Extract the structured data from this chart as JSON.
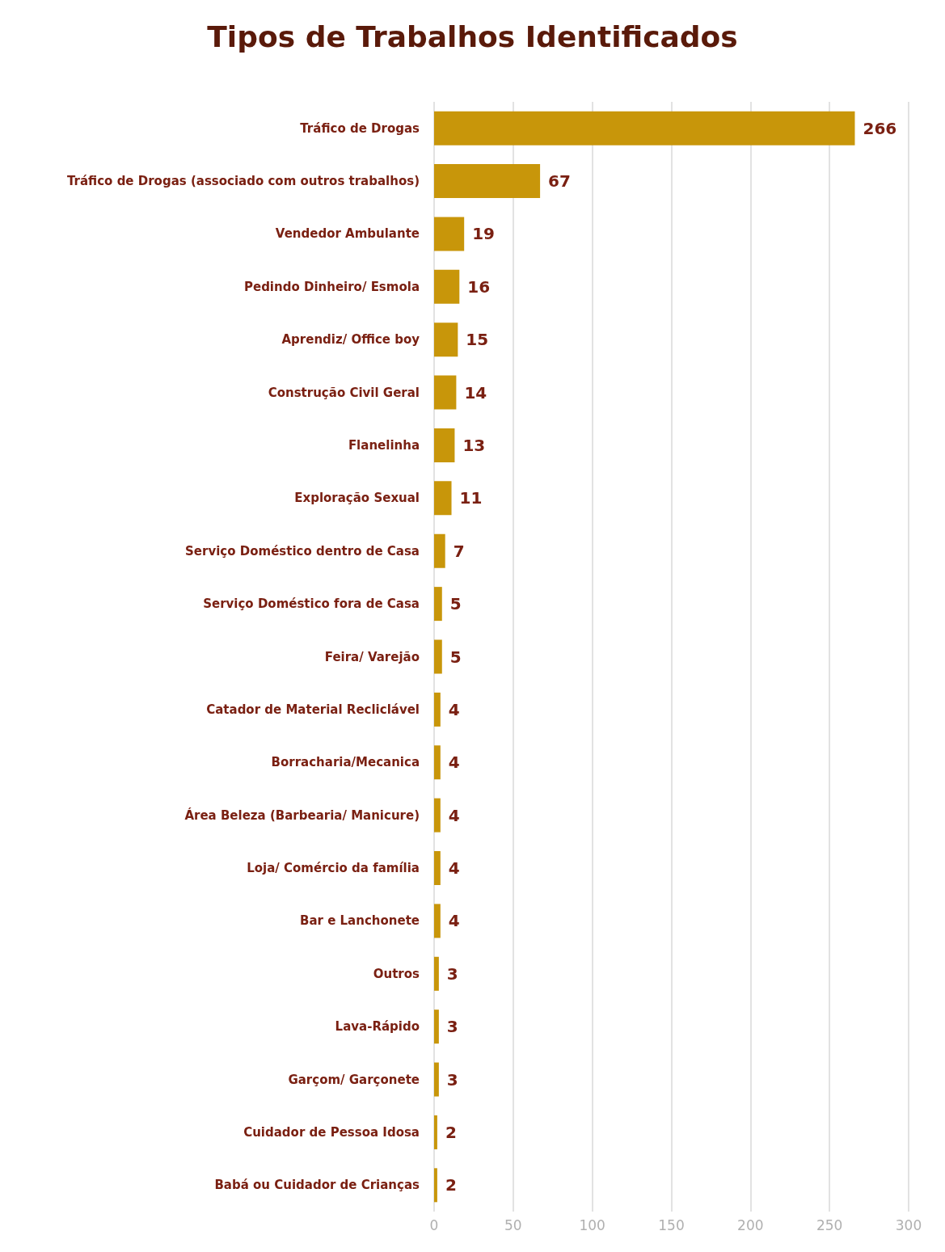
{
  "chart_data": {
    "type": "bar",
    "orientation": "horizontal",
    "title": "Tipos de Trabalhos Identificados",
    "categories": [
      "Tráfico de Drogas",
      "Tráfico de Drogas (associado com outros trabalhos)",
      "Vendedor Ambulante",
      "Pedindo Dinheiro/ Esmola",
      "Aprendiz/ Office boy",
      "Construção Civil Geral",
      "Flanelinha",
      "Exploração Sexual",
      "Serviço Doméstico dentro de Casa",
      "Serviço Doméstico fora de Casa",
      "Feira/ Varejão",
      "Catador de Material Recliclável",
      "Borracharia/Mecanica",
      "Área Beleza (Barbearia/ Manicure)",
      "Loja/ Comércio da família",
      "Bar e Lanchonete",
      "Outros",
      "Lava-Rápido",
      "Garçom/ Garçonete",
      "Cuidador de Pessoa Idosa",
      "Babá ou Cuidador de Crianças"
    ],
    "values": [
      266,
      67,
      19,
      16,
      15,
      14,
      13,
      11,
      7,
      5,
      5,
      4,
      4,
      4,
      4,
      4,
      3,
      3,
      3,
      2,
      2
    ],
    "color": "#c8960a",
    "xlim": [
      0,
      300
    ],
    "xticks": [
      0,
      50,
      100,
      150,
      200,
      250,
      300
    ],
    "grid": "x",
    "data_labels": true
  }
}
